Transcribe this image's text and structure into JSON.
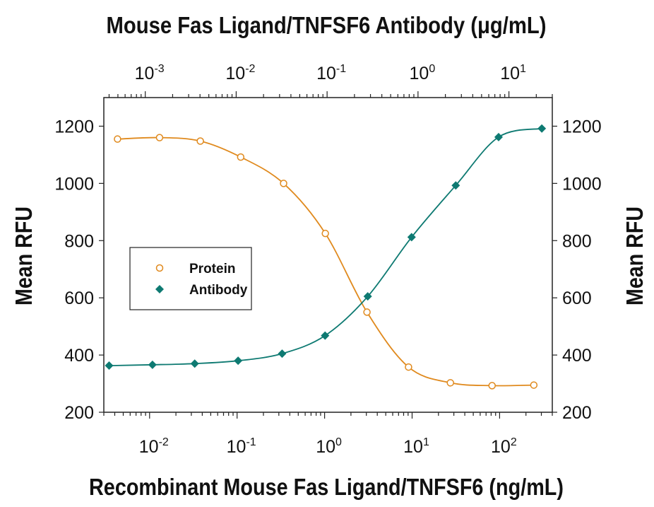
{
  "chart_data": {
    "type": "scatter",
    "title": "Mouse Fas Ligand/TNFSF6 Antibody (μg/mL)",
    "xlabel": "Recombinant Mouse Fas Ligand/TNFSF6 (ng/mL)",
    "ylabel_left": "Mean RFU",
    "ylabel_right": "Mean RFU",
    "x_scale": "log",
    "xlim": [
      0.003,
      400
    ],
    "x2_scale": "log",
    "x2lim": [
      0.00035,
      30
    ],
    "ylim": [
      200,
      1300
    ],
    "y_ticks": [
      "200",
      "400",
      "600",
      "800",
      "1000",
      "1200"
    ],
    "x_ticks": [
      {
        "base": "10",
        "exp": "-2",
        "value": 0.01
      },
      {
        "base": "10",
        "exp": "-1",
        "value": 0.1
      },
      {
        "base": "10",
        "exp": "0",
        "value": 1
      },
      {
        "base": "10",
        "exp": "1",
        "value": 10
      },
      {
        "base": "10",
        "exp": "2",
        "value": 100
      }
    ],
    "x2_ticks": [
      {
        "base": "10",
        "exp": "-3",
        "value": 0.001
      },
      {
        "base": "10",
        "exp": "-2",
        "value": 0.01
      },
      {
        "base": "10",
        "exp": "-1",
        "value": 0.1
      },
      {
        "base": "10",
        "exp": "0",
        "value": 1
      },
      {
        "base": "10",
        "exp": "1",
        "value": 10
      }
    ],
    "legend": {
      "position": "middle-left",
      "entries": [
        "Protein",
        "Antibody"
      ]
    },
    "series": [
      {
        "name": "Protein",
        "axis": "bottom",
        "marker": "open-circle",
        "color": "#E08A1E",
        "x": [
          0.0043,
          0.013,
          0.038,
          0.11,
          0.34,
          1.02,
          3.05,
          9.1,
          27.4,
          82,
          246
        ],
        "y": [
          1155,
          1160,
          1148,
          1092,
          1000,
          825,
          550,
          358,
          303,
          293,
          295
        ]
      },
      {
        "name": "Antibody",
        "axis": "top",
        "marker": "filled-diamond",
        "color": "#0E7A72",
        "x": [
          0.0004,
          0.0012,
          0.0035,
          0.0105,
          0.032,
          0.095,
          0.28,
          0.85,
          2.6,
          7.7,
          23
        ],
        "y": [
          363,
          366,
          370,
          380,
          405,
          468,
          605,
          812,
          993,
          1162,
          1192
        ]
      }
    ]
  }
}
